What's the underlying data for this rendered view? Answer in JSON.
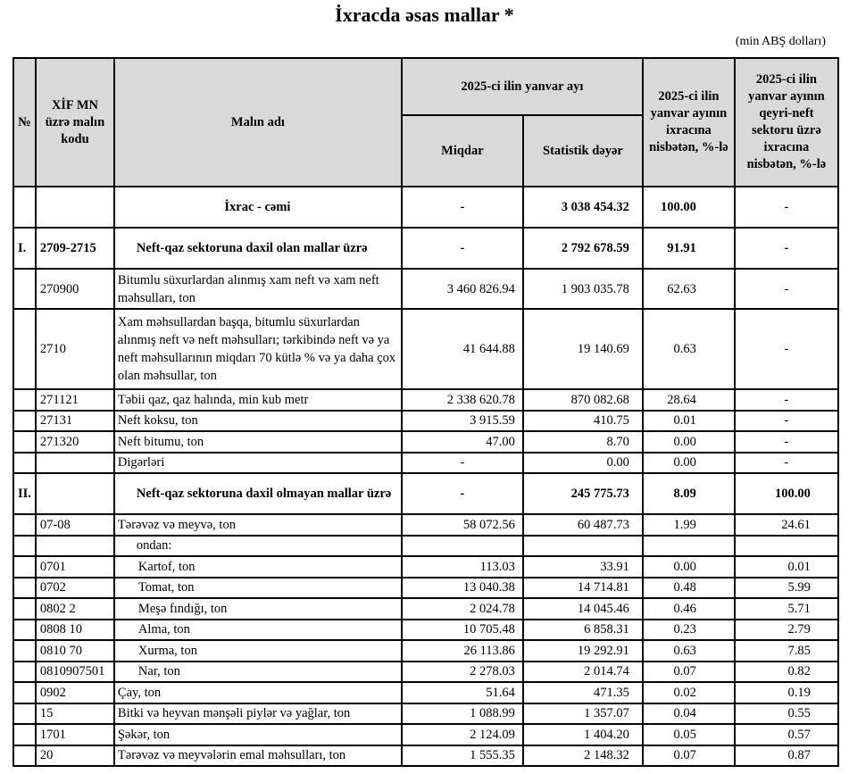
{
  "title": "İxracda əsas mallar *",
  "unit": "(min ABŞ dolları)",
  "headers": {
    "no": "№",
    "code": "XİF MN üzrə malın kodu",
    "name": "Malın adı",
    "period": "2025-ci ilin yanvar ayı",
    "qty": "Miqdar",
    "value": "Statistik dəyər",
    "share": "2025-ci ilin yanvar ayının ixracına nisbətən, %-lə",
    "nonoil_share": "2025-ci ilin yanvar ayının qeyri-neft sektoru üzrə ixracına nisbətən, %-lə"
  },
  "rows": [
    {
      "type": "total",
      "no": "",
      "code": "",
      "name": "İxrac - cəmi",
      "qty": "-",
      "value": "3 038 454.32",
      "share": "100.00",
      "nonoil": "-"
    },
    {
      "type": "section",
      "no": "I.",
      "code": "2709-2715",
      "name": "Neft-qaz sektoruna daxil olan mallar üzrə",
      "qty": "-",
      "value": "2 792 678.59",
      "share": "91.91",
      "nonoil": "-"
    },
    {
      "type": "item",
      "no": "",
      "code": "270900",
      "name": "Bitumlu süxurlardan alınmış xam neft və xam neft məhsulları, ton",
      "qty": "3 460 826.94",
      "value": "1 903 035.78",
      "share": "62.63",
      "nonoil": "-"
    },
    {
      "type": "item",
      "no": "",
      "code": "2710",
      "name": "Xam məhsullardan başqa, bitumlu süxurlardan alınmış neft və neft məhsulları; tərkibində neft və ya neft məhsullarının miqdarı 70 kütlə % və ya daha çox olan məhsullar, ton",
      "qty": "41 644.88",
      "value": "19 140.69",
      "share": "0.63",
      "nonoil": "-"
    },
    {
      "type": "item",
      "no": "",
      "code": "271121",
      "name": "Təbii qaz, qaz halında, min kub metr",
      "qty": "2 338 620.78",
      "value": "870 082.68",
      "share": "28.64",
      "nonoil": "-"
    },
    {
      "type": "item",
      "no": "",
      "code": "27131",
      "name": "Neft koksu, ton",
      "qty": "3 915.59",
      "value": "410.75",
      "share": "0.01",
      "nonoil": "-"
    },
    {
      "type": "item",
      "no": "",
      "code": "271320",
      "name": "Neft bitumu, ton",
      "qty": "47.00",
      "value": "8.70",
      "share": "0.00",
      "nonoil": "-"
    },
    {
      "type": "item",
      "no": "",
      "code": "",
      "name": "Digərləri",
      "qty": "-",
      "value": "0.00",
      "share": "0.00",
      "nonoil": "-"
    },
    {
      "type": "section",
      "no": "II.",
      "code": "",
      "name": "Neft-qaz sektoruna daxil olmayan mallar üzrə",
      "qty": "-",
      "value": "245 775.73",
      "share": "8.09",
      "nonoil": "100.00"
    },
    {
      "type": "item",
      "no": "",
      "code": "07-08",
      "name": "Tərəvəz və meyvə, ton",
      "qty": "58 072.56",
      "value": "60 487.73",
      "share": "1.99",
      "nonoil": "24.61"
    },
    {
      "type": "label",
      "no": "",
      "code": "",
      "name": "ondan:",
      "qty": "",
      "value": "",
      "share": "",
      "nonoil": ""
    },
    {
      "type": "subitem",
      "no": "",
      "code": "0701",
      "name": "Kartof, ton",
      "qty": "113.03",
      "value": "33.91",
      "share": "0.00",
      "nonoil": "0.01"
    },
    {
      "type": "subitem",
      "no": "",
      "code": "0702",
      "name": "Tomat, ton",
      "qty": "13 040.38",
      "value": "14 714.81",
      "share": "0.48",
      "nonoil": "5.99"
    },
    {
      "type": "subitem",
      "no": "",
      "code": "0802 2",
      "name": "Meşə fındığı, ton",
      "qty": "2 024.78",
      "value": "14 045.46",
      "share": "0.46",
      "nonoil": "5.71"
    },
    {
      "type": "subitem",
      "no": "",
      "code": "0808 10",
      "name": "Alma, ton",
      "qty": "10 705.48",
      "value": "6 858.31",
      "share": "0.23",
      "nonoil": "2.79"
    },
    {
      "type": "subitem",
      "no": "",
      "code": "0810 70",
      "name": "Xurma, ton",
      "qty": "26 113.86",
      "value": "19 292.91",
      "share": "0.63",
      "nonoil": "7.85"
    },
    {
      "type": "subitem",
      "no": "",
      "code": "0810907501",
      "name": "Nar, ton",
      "qty": "2 278.03",
      "value": "2 014.74",
      "share": "0.07",
      "nonoil": "0.82"
    },
    {
      "type": "item",
      "no": "",
      "code": "0902",
      "name": "Çay, ton",
      "qty": "51.64",
      "value": "471.35",
      "share": "0.02",
      "nonoil": "0.19"
    },
    {
      "type": "item",
      "no": "",
      "code": "15",
      "name": "Bitki və heyvan mənşəli piylər və yağlar, ton",
      "qty": "1 088.99",
      "value": "1 357.07",
      "share": "0.04",
      "nonoil": "0.55"
    },
    {
      "type": "item",
      "no": "",
      "code": "1701",
      "name": "Şəkər, ton",
      "qty": "2 124.09",
      "value": "1 404.20",
      "share": "0.05",
      "nonoil": "0.57"
    },
    {
      "type": "item",
      "no": "",
      "code": "20",
      "name": "Tərəvəz və meyvələrin emal məhsulları, ton",
      "qty": "1 555.35",
      "value": "2 148.32",
      "share": "0.07",
      "nonoil": "0.87"
    }
  ]
}
